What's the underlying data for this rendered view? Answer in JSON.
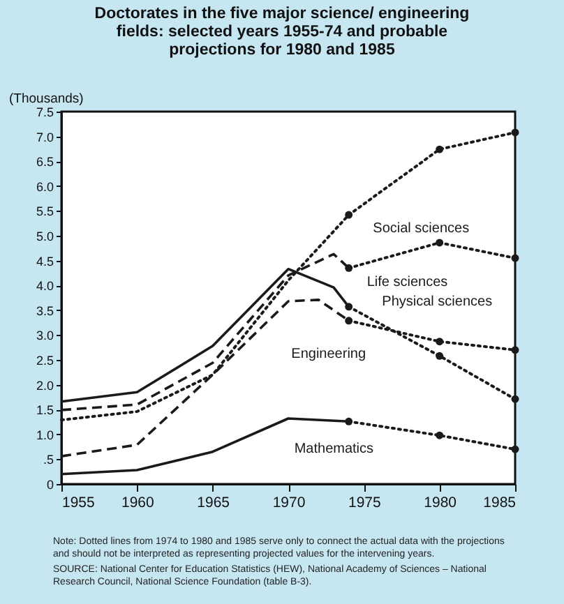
{
  "chart_data": {
    "type": "line",
    "title": "Doctorates in the five major science/ engineering fields: selected years 1955-74 and probable projections for 1980 and 1985",
    "ylabel": "(Thousands)",
    "xlim": [
      1955,
      1985
    ],
    "xticks": [
      1955,
      1960,
      1965,
      1970,
      1975,
      1980,
      1985
    ],
    "ylim": [
      0,
      7.5
    ],
    "yticks": [
      0,
      {
        "value": 0.5,
        "label": ".5"
      },
      "1.0",
      1.5,
      "2.0",
      2.5,
      "3.0",
      3.5,
      "4.0",
      4.5,
      "5.0",
      5.5,
      "6.0",
      6.5,
      "7.0",
      7.5
    ],
    "grid": false,
    "series": [
      {
        "name": "Social sciences",
        "color": "#1a1a1a",
        "line_style": "dotted",
        "marker": "none",
        "x": [
          1955,
          1960,
          1965,
          1970,
          1974
        ],
        "values": [
          1.29,
          1.46,
          2.2,
          4.1,
          5.42
        ]
      },
      {
        "color": "#1a1a1a",
        "line_style": "dotted",
        "marker": "circle",
        "x": [
          1974,
          1980,
          1985
        ],
        "values": [
          5.42,
          6.74,
          7.08
        ]
      },
      {
        "name": "Life sciences",
        "color": "#1a1a1a",
        "line_style": "dashed",
        "marker": "none",
        "x": [
          1955,
          1960,
          1965,
          1970,
          1973,
          1974
        ],
        "values": [
          1.49,
          1.6,
          2.44,
          4.2,
          4.63,
          4.35
        ]
      },
      {
        "color": "#1a1a1a",
        "line_style": "dotted",
        "marker": "circle",
        "x": [
          1974,
          1980,
          1985
        ],
        "values": [
          4.35,
          4.86,
          4.55
        ]
      },
      {
        "name": "Physical sciences",
        "color": "#1a1a1a",
        "line_style": "solid",
        "marker": "none",
        "x": [
          1955,
          1960,
          1965,
          1970,
          1973,
          1974
        ],
        "values": [
          1.66,
          1.85,
          2.78,
          4.33,
          3.96,
          3.57
        ]
      },
      {
        "color": "#1a1a1a",
        "line_style": "dotted",
        "marker": "circle",
        "x": [
          1974,
          1980,
          1985
        ],
        "values": [
          3.57,
          2.58,
          1.71
        ]
      },
      {
        "name": "Engineering",
        "color": "#1a1a1a",
        "line_style": "dashed",
        "marker": "none",
        "x": [
          1955,
          1960,
          1965,
          1970,
          1972,
          1974
        ],
        "values": [
          0.56,
          0.79,
          2.2,
          3.68,
          3.71,
          3.29
        ]
      },
      {
        "color": "#1a1a1a",
        "line_style": "dotted",
        "marker": "circle",
        "x": [
          1974,
          1980,
          1985
        ],
        "values": [
          3.29,
          2.87,
          2.7
        ]
      },
      {
        "name": "Mathematics",
        "color": "#1a1a1a",
        "line_style": "solid",
        "marker": "none",
        "x": [
          1955,
          1960,
          1965,
          1970,
          1974
        ],
        "values": [
          0.2,
          0.28,
          0.65,
          1.32,
          1.26
        ]
      },
      {
        "color": "#1a1a1a",
        "line_style": "dotted",
        "marker": "circle",
        "x": [
          1974,
          1980,
          1985
        ],
        "values": [
          1.26,
          0.98,
          0.7
        ]
      }
    ],
    "annotations": [
      "Note: Dotted lines from 1974 to 1980 and 1985 serve only to connect the actual data with the projections and should not be interpreted as representing projected values for the intervening years.",
      "SOURCE: National Center for Education Statistics (HEW), National Academy of Sciences – National Research Council, National Science Foundation (table B-3)."
    ]
  }
}
